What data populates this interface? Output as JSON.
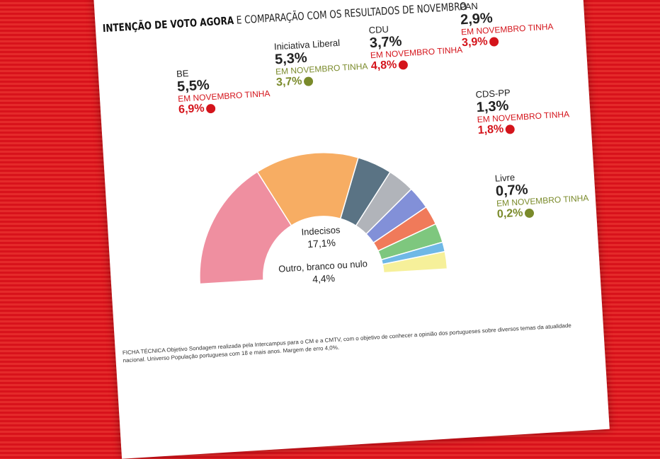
{
  "header": {
    "title_bold": "INTENÇÃO DE VOTO AGORA",
    "title_rest": "E COMPARAÇÃO COM OS RESULTADOS DE NOVEMBRO"
  },
  "chart_data": {
    "type": "pie",
    "categories": [
      null,
      null,
      null,
      null,
      null,
      null,
      null,
      null,
      null
    ],
    "values": [
      34,
      27,
      9,
      7,
      6,
      5,
      5,
      2.5,
      4.5
    ],
    "colors": [
      "#ef8fa0",
      "#f7ad63",
      "#5a7384",
      "#b1b4ba",
      "#8290d8",
      "#f07a5a",
      "#7ec77e",
      "#6fb8e6",
      "#f6f09a"
    ],
    "half": true
  },
  "parties": [
    {
      "name": "BE",
      "value": "5,5%",
      "note": "EM NOVEMBRO TINHA",
      "previous": "6,9%",
      "trend": "down"
    },
    {
      "name": "Iniciativa Liberal",
      "value": "5,3%",
      "note": "EM NOVEMBRO TINHA",
      "previous": "3,7%",
      "trend": "up"
    },
    {
      "name": "CDU",
      "value": "3,7%",
      "note": "EM NOVEMBRO TINHA",
      "previous": "4,8%",
      "trend": "down"
    },
    {
      "name": "PAN",
      "value": "2,9%",
      "note": "EM NOVEMBRO TINHA",
      "previous": "3,9%",
      "trend": "down"
    },
    {
      "name": "CDS-PP",
      "value": "1,3%",
      "note": "EM NOVEMBRO TINHA",
      "previous": "1,8%",
      "trend": "down"
    },
    {
      "name": "Livre",
      "value": "0,7%",
      "note": "EM NOVEMBRO TINHA",
      "previous": "0,2%",
      "trend": "up"
    }
  ],
  "center_labels": [
    {
      "name": "Indecisos",
      "value": "17,1%"
    },
    {
      "name": "Outro, branco ou nulo",
      "value": "4,4%"
    }
  ],
  "footer": "FICHA TÉCNICA Objetivo Sondagem realizada pela Intercampus para o CM e a CMTV, com o objetivo de conhecer a opinião dos portugueses sobre diversos temas da atualidade nacional. Universo População portuguesa com 18 e mais anos. Margem de erro 4,0%."
}
